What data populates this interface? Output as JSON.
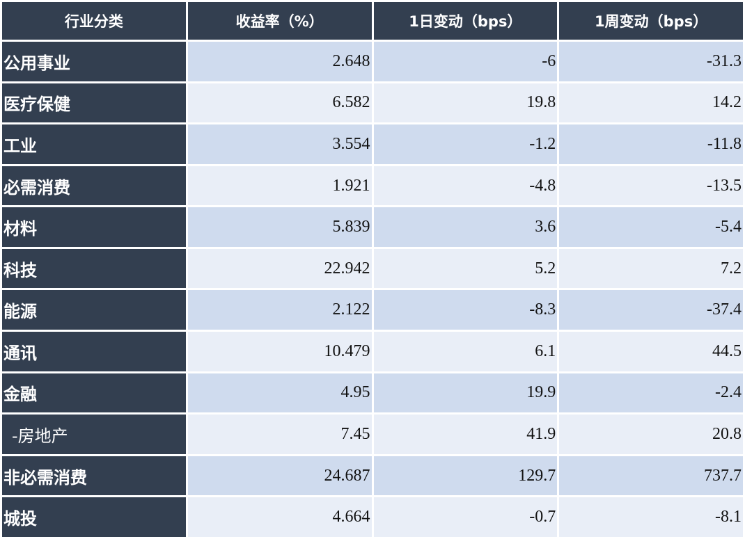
{
  "table": {
    "header": [
      "行业分类",
      "收益率（%）",
      "1日变动（bps）",
      "1周变动（bps）"
    ],
    "rows": [
      [
        "公用事业",
        "2.648",
        "-6",
        "-31.3"
      ],
      [
        "医疗保健",
        "6.582",
        "19.8",
        "14.2"
      ],
      [
        "工业",
        "3.554",
        "-1.2",
        "-11.8"
      ],
      [
        "必需消费",
        "1.921",
        "-4.8",
        "-13.5"
      ],
      [
        "材料",
        "5.839",
        "3.6",
        "-5.4"
      ],
      [
        "科技",
        "22.942",
        "5.2",
        "7.2"
      ],
      [
        "能源",
        "2.122",
        "-8.3",
        "-37.4"
      ],
      [
        "通讯",
        "10.479",
        "6.1",
        "44.5"
      ],
      [
        "金融",
        "4.95",
        "19.9",
        "-2.4"
      ],
      [
        "-房地产",
        "7.45",
        "41.9",
        "20.8"
      ],
      [
        "非必需消费",
        "24.687",
        "129.7",
        "737.7"
      ],
      [
        "城投",
        "4.664",
        "-0.7",
        "-8.1"
      ]
    ]
  }
}
